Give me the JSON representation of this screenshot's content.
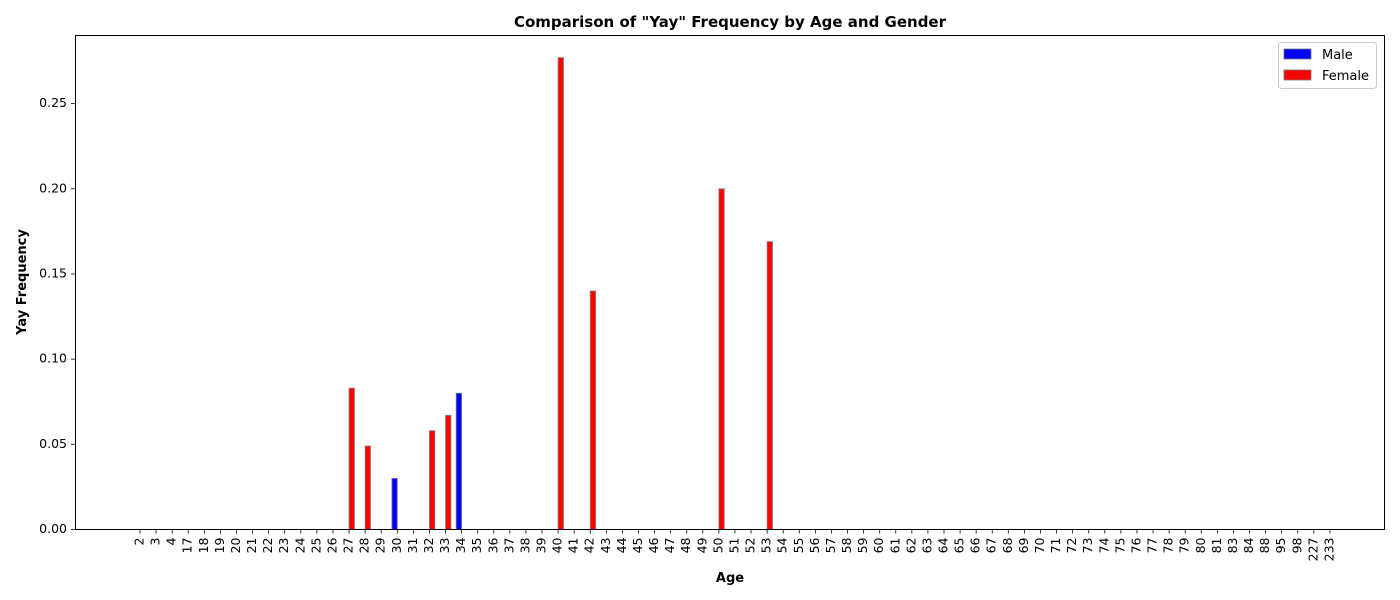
{
  "chart_data": {
    "type": "bar",
    "title": "Comparison of \"Yay\" Frequency by Age and Gender",
    "xlabel": "Age",
    "ylabel": "Yay Frequency",
    "ylim": [
      0,
      0.29
    ],
    "yticks": [
      "0.00",
      "0.05",
      "0.10",
      "0.15",
      "0.20",
      "0.25"
    ],
    "ytick_values": [
      0,
      0.05,
      0.1,
      0.15,
      0.2,
      0.25
    ],
    "grid": false,
    "legend_position": "top-right",
    "categories": [
      "2",
      "3",
      "4",
      "17",
      "18",
      "19",
      "20",
      "21",
      "22",
      "23",
      "24",
      "25",
      "26",
      "27",
      "28",
      "29",
      "30",
      "31",
      "32",
      "33",
      "34",
      "35",
      "36",
      "37",
      "38",
      "39",
      "40",
      "41",
      "42",
      "43",
      "44",
      "45",
      "46",
      "47",
      "48",
      "49",
      "50",
      "51",
      "52",
      "53",
      "54",
      "55",
      "56",
      "57",
      "58",
      "59",
      "60",
      "61",
      "62",
      "63",
      "64",
      "65",
      "66",
      "67",
      "68",
      "69",
      "70",
      "71",
      "72",
      "73",
      "74",
      "75",
      "76",
      "77",
      "78",
      "79",
      "80",
      "81",
      "83",
      "84",
      "88",
      "95",
      "98",
      "227",
      "233"
    ],
    "series": [
      {
        "name": "Male",
        "color": "#0000ff",
        "values": [
          0,
          0,
          0,
          0,
          0,
          0,
          0,
          0,
          0,
          0,
          0,
          0,
          0,
          0,
          0,
          0,
          0.03,
          0,
          0,
          0,
          0.08,
          0,
          0,
          0,
          0,
          0,
          0,
          0,
          0,
          0,
          0,
          0,
          0,
          0,
          0,
          0,
          0,
          0,
          0,
          0,
          0,
          0,
          0,
          0,
          0,
          0,
          0,
          0,
          0,
          0,
          0,
          0,
          0,
          0,
          0,
          0,
          0,
          0,
          0,
          0,
          0,
          0,
          0,
          0,
          0,
          0,
          0,
          0,
          0,
          0,
          0,
          0,
          0,
          0,
          0
        ]
      },
      {
        "name": "Female",
        "color": "#ff0000",
        "values": [
          0,
          0,
          0,
          0,
          0,
          0,
          0,
          0,
          0,
          0,
          0,
          0,
          0,
          0.083,
          0.049,
          0,
          0,
          0,
          0.058,
          0.067,
          0,
          0,
          0,
          0,
          0,
          0,
          0.277,
          0,
          0.14,
          0,
          0,
          0,
          0,
          0,
          0,
          0,
          0.2,
          0,
          0,
          0.169,
          0,
          0,
          0,
          0,
          0,
          0,
          0,
          0,
          0,
          0,
          0,
          0,
          0,
          0,
          0,
          0,
          0,
          0,
          0,
          0,
          0,
          0,
          0,
          0,
          0,
          0,
          0,
          0,
          0,
          0,
          0,
          0,
          0,
          0,
          0
        ]
      }
    ]
  }
}
